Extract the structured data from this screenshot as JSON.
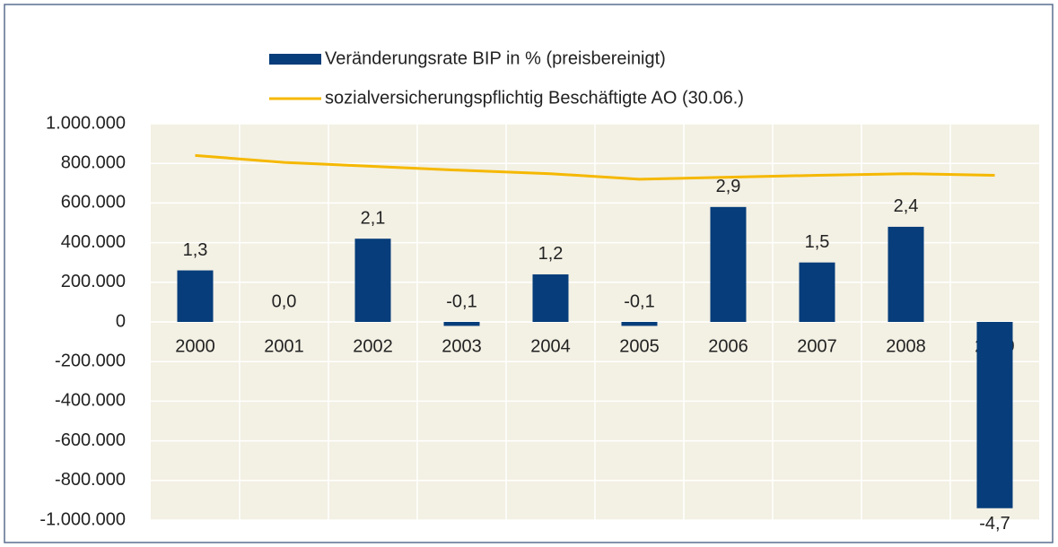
{
  "chart_data": {
    "type": "bar_line",
    "categories": [
      "2000",
      "2001",
      "2002",
      "2003",
      "2004",
      "2005",
      "2006",
      "2007",
      "2008",
      "2009"
    ],
    "series": [
      {
        "name": "Veränderungsrate BIP in % (preisbereinigt)",
        "type": "bar",
        "color": "#063d7a",
        "axis": "y2",
        "values": [
          1.3,
          0.0,
          2.1,
          -0.1,
          1.2,
          -0.1,
          2.9,
          1.5,
          2.4,
          -4.7
        ],
        "value_labels": [
          "1,3",
          "0,0",
          "2,1",
          "-0,1",
          "1,2",
          "-0,1",
          "2,9",
          "1,5",
          "2,4",
          "-4,7"
        ]
      },
      {
        "name": "sozialversicherungspflichtig Beschäftigte AO (30.06.)",
        "type": "line",
        "color": "#f5b800",
        "values": [
          840000,
          805000,
          785000,
          765000,
          748000,
          720000,
          730000,
          740000,
          748000,
          740000
        ]
      }
    ],
    "ylim": [
      -1000000,
      1000000
    ],
    "yticks": [
      {
        "value": -1000000,
        "label": "-1.000.000"
      },
      {
        "value": -800000,
        "label": "-800.000"
      },
      {
        "value": -600000,
        "label": "-600.000"
      },
      {
        "value": -400000,
        "label": "-400.000"
      },
      {
        "value": -200000,
        "label": "-200.000"
      },
      0,
      {
        "value": 200000,
        "label": "200.000"
      },
      {
        "value": 400000,
        "label": "400.000"
      },
      {
        "value": 600000,
        "label": "600.000"
      },
      {
        "value": 800000,
        "label": "800.000"
      },
      {
        "value": 1000000,
        "label": "1.000.000"
      }
    ],
    "y2lim": [
      -5,
      5
    ],
    "grid": true
  }
}
